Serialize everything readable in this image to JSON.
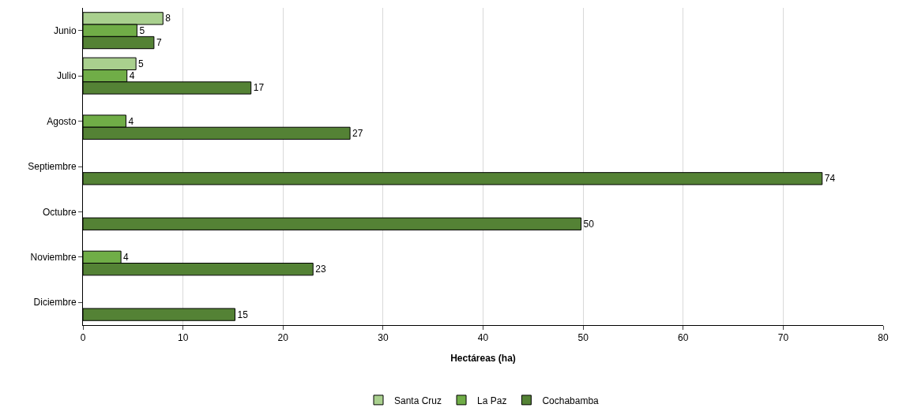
{
  "chart_data": {
    "type": "bar",
    "orientation": "horizontal",
    "xlabel": "Hectáreas (ha)",
    "categories": [
      "Junio",
      "Julio",
      "Agosto",
      "Septiembre",
      "Octubre",
      "Noviembre",
      "Diciembre"
    ],
    "series": [
      {
        "name": "Santa Cruz",
        "color": "#a9d08e",
        "values": [
          8,
          5.3,
          null,
          null,
          null,
          null,
          null
        ],
        "value_labels": [
          "8",
          "5",
          null,
          null,
          null,
          null,
          null
        ]
      },
      {
        "name": "La Paz",
        "color": "#70ad47",
        "values": [
          5.4,
          4.4,
          4.3,
          null,
          null,
          3.8,
          null
        ],
        "value_labels": [
          "5",
          "4",
          "4",
          null,
          null,
          "4",
          null
        ]
      },
      {
        "name": "Cochabamba",
        "color": "#548235",
        "values": [
          7.1,
          16.8,
          26.7,
          73.9,
          49.8,
          23,
          15.2
        ],
        "value_labels": [
          "7",
          "17",
          "27",
          "74",
          "50",
          "23",
          "15"
        ]
      }
    ],
    "xlim": [
      0,
      80
    ],
    "xticks": [
      0,
      10,
      20,
      30,
      40,
      50,
      60,
      70,
      80
    ],
    "grid": "x",
    "legend": "bottom"
  }
}
